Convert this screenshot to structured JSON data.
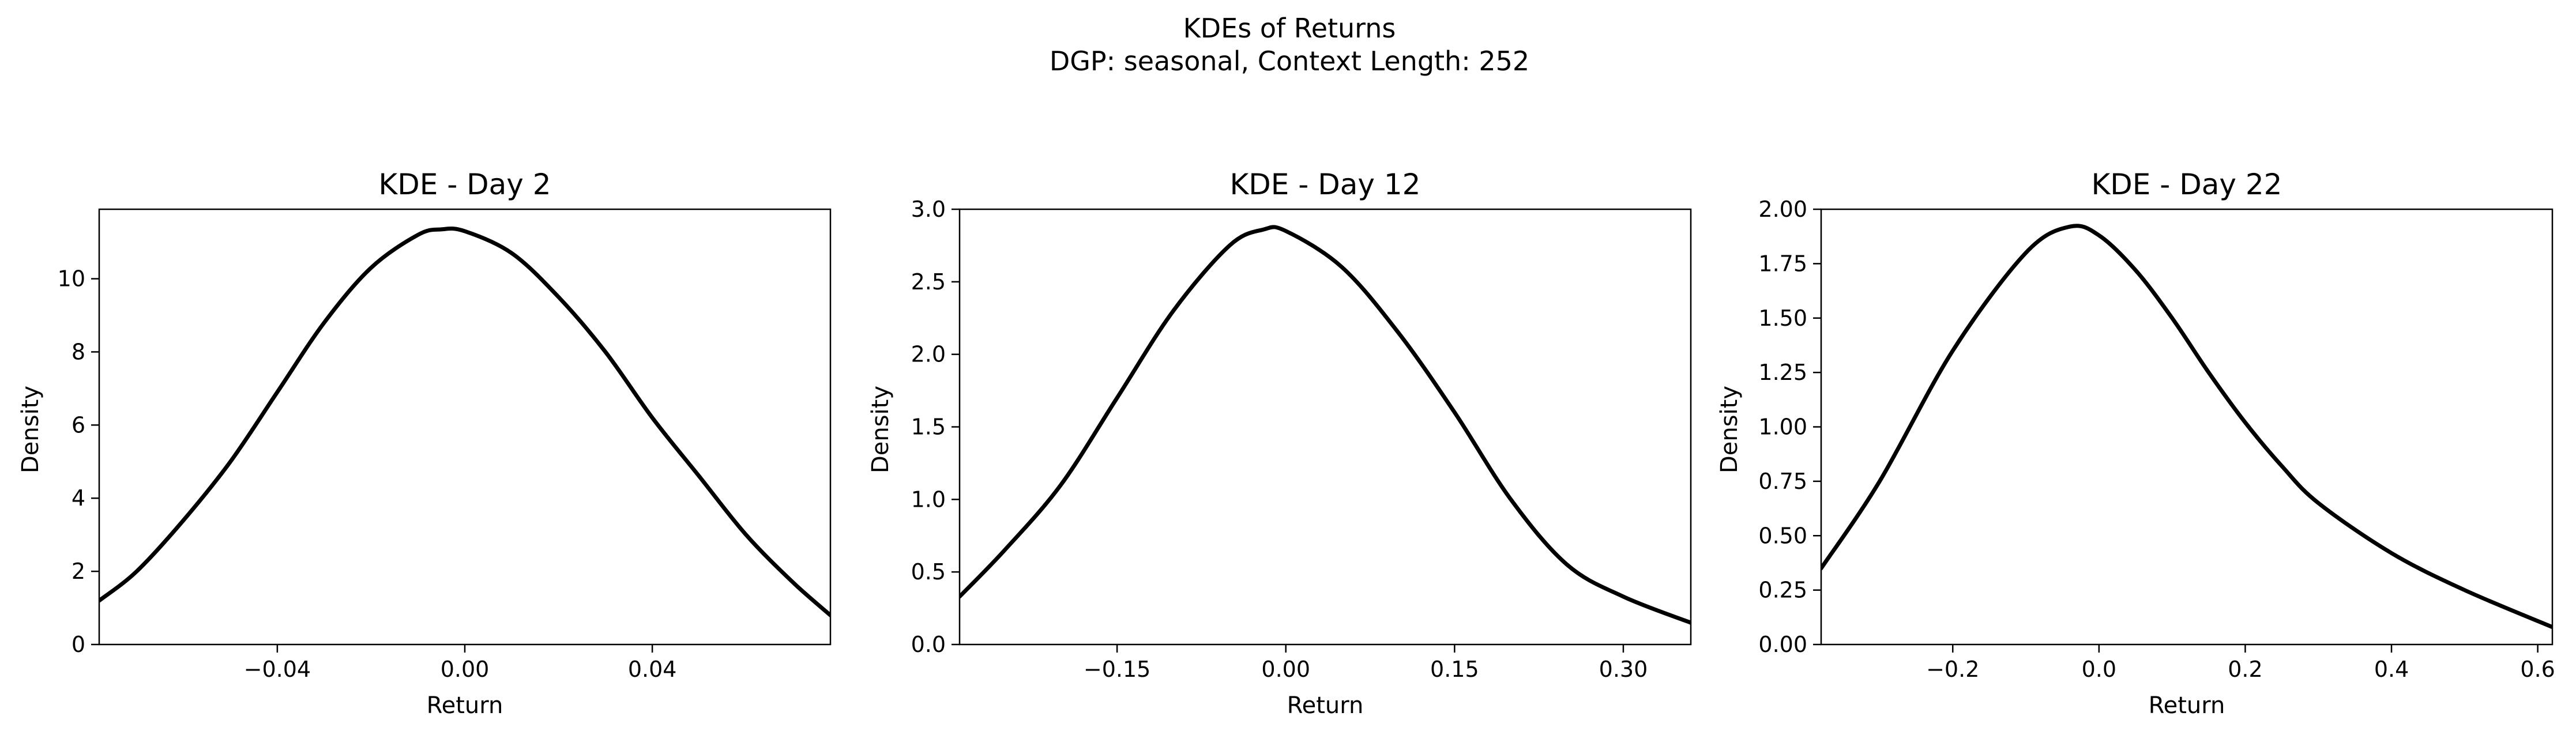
{
  "figure": {
    "title_line1": "KDEs of Returns",
    "title_line2": "DGP: seasonal, Context Length: 252"
  },
  "chart_data": [
    {
      "type": "line",
      "title": "KDE - Day 2",
      "xlabel": "Return",
      "ylabel": "Density",
      "xlim": [
        -0.078,
        0.078
      ],
      "ylim": [
        0,
        11.9
      ],
      "xticks": [
        -0.04,
        0.0,
        0.04
      ],
      "xtick_labels": [
        "−0.04",
        "0.00",
        "0.04"
      ],
      "yticks": [
        0,
        2,
        4,
        6,
        8,
        10
      ],
      "ytick_labels": [
        "0",
        "2",
        "4",
        "6",
        "8",
        "10"
      ],
      "grid": false,
      "color": "#000000",
      "x": [
        -0.078,
        -0.07,
        -0.06,
        -0.05,
        -0.04,
        -0.03,
        -0.02,
        -0.01,
        -0.005,
        0.0,
        0.01,
        0.02,
        0.03,
        0.04,
        0.05,
        0.06,
        0.07,
        0.078
      ],
      "y": [
        1.2,
        2.0,
        3.4,
        5.0,
        6.9,
        8.8,
        10.3,
        11.2,
        11.35,
        11.3,
        10.7,
        9.5,
        8.0,
        6.2,
        4.6,
        3.0,
        1.7,
        0.8
      ]
    },
    {
      "type": "line",
      "title": "KDE - Day 12",
      "xlabel": "Return",
      "ylabel": "Density",
      "xlim": [
        -0.29,
        0.36
      ],
      "ylim": [
        0,
        3.0
      ],
      "xticks": [
        -0.15,
        0.0,
        0.15,
        0.3
      ],
      "xtick_labels": [
        "−0.15",
        "0.00",
        "0.15",
        "0.30"
      ],
      "yticks": [
        0.0,
        0.5,
        1.0,
        1.5,
        2.0,
        2.5,
        3.0
      ],
      "ytick_labels": [
        "0.0",
        "0.5",
        "1.0",
        "1.5",
        "2.0",
        "2.5",
        "3.0"
      ],
      "grid": false,
      "color": "#000000",
      "x": [
        -0.29,
        -0.25,
        -0.2,
        -0.15,
        -0.1,
        -0.05,
        -0.02,
        0.0,
        0.05,
        0.1,
        0.15,
        0.2,
        0.25,
        0.3,
        0.36
      ],
      "y": [
        0.33,
        0.65,
        1.1,
        1.7,
        2.3,
        2.75,
        2.86,
        2.85,
        2.6,
        2.15,
        1.6,
        1.0,
        0.55,
        0.33,
        0.15
      ]
    },
    {
      "type": "line",
      "title": "KDE - Day 22",
      "xlabel": "Return",
      "ylabel": "Density",
      "xlim": [
        -0.38,
        0.62
      ],
      "ylim": [
        0,
        2.0
      ],
      "xticks": [
        -0.2,
        0.0,
        0.2,
        0.4,
        0.6
      ],
      "xtick_labels": [
        "−0.2",
        "0.0",
        "0.2",
        "0.4",
        "0.6"
      ],
      "yticks": [
        0.0,
        0.25,
        0.5,
        0.75,
        1.0,
        1.25,
        1.5,
        1.75,
        2.0
      ],
      "ytick_labels": [
        "0.00",
        "0.25",
        "0.50",
        "0.75",
        "1.00",
        "1.25",
        "1.50",
        "1.75",
        "2.00"
      ],
      "grid": false,
      "color": "#000000",
      "x": [
        -0.38,
        -0.3,
        -0.2,
        -0.1,
        -0.04,
        0.0,
        0.05,
        0.1,
        0.15,
        0.2,
        0.25,
        0.3,
        0.4,
        0.5,
        0.62
      ],
      "y": [
        0.35,
        0.75,
        1.35,
        1.8,
        1.92,
        1.88,
        1.72,
        1.5,
        1.25,
        1.02,
        0.82,
        0.65,
        0.42,
        0.25,
        0.08
      ]
    }
  ]
}
